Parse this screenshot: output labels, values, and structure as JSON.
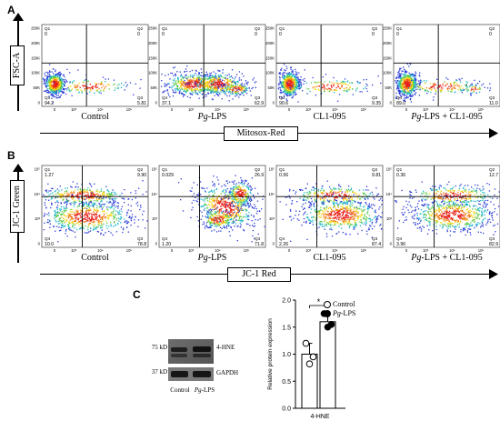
{
  "panels": {
    "a": "A",
    "b": "B",
    "c": "C"
  },
  "panel_a": {
    "y_axis_label": "FSC-A",
    "x_axis_label": "Mitosox-Red",
    "y_ticks": [
      "250K",
      "200K",
      "150K",
      "100K",
      "50K",
      "0"
    ],
    "x_ticks": [
      "0",
      "10³",
      "10⁴",
      "10⁵"
    ],
    "plots": [
      {
        "caption_plain": "Control",
        "caption_ital": "",
        "caption_rest": "",
        "q1": "0",
        "q2": "0",
        "q3": "5.81",
        "q4": "94.2"
      },
      {
        "caption_plain": "",
        "caption_ital": "Pg",
        "caption_rest": "-LPS",
        "q1": "0",
        "q2": "0",
        "q3": "62.9",
        "q4": "37.1"
      },
      {
        "caption_plain": "CL1-095",
        "caption_ital": "",
        "caption_rest": "",
        "q1": "0",
        "q2": "0",
        "q3": "9.35",
        "q4": "90.6"
      },
      {
        "caption_plain": "",
        "caption_ital": "Pg",
        "caption_rest": "-LPS + CL1-095",
        "q1": "0",
        "q2": "0",
        "q3": "11.0",
        "q4": "89.0"
      }
    ]
  },
  "panel_b": {
    "y_axis_label": "JC-1 Green",
    "x_axis_label": "JC-1 Red",
    "y_ticks": [
      "10⁵",
      "10⁴",
      "10³",
      "0"
    ],
    "x_ticks": [
      "0",
      "10³",
      "10⁴",
      "10⁵"
    ],
    "plots": [
      {
        "caption_plain": "Control",
        "caption_ital": "",
        "caption_rest": "",
        "q1": "1.27",
        "q2": "9.90",
        "q3": "78.8",
        "q4": "10.0"
      },
      {
        "caption_plain": "",
        "caption_ital": "Pg",
        "caption_rest": "-LPS",
        "q1": "0.029",
        "q2": "26.9",
        "q3": "71.8",
        "q4": "1.20"
      },
      {
        "caption_plain": "CL1-095",
        "caption_ital": "",
        "caption_rest": "",
        "q1": "0.56",
        "q2": "9.81",
        "q3": "87.4",
        "q4": "2.26"
      },
      {
        "caption_plain": "",
        "caption_ital": "Pg",
        "caption_rest": "-LPS + CL1-095",
        "q1": "0.36",
        "q2": "12.7",
        "q3": "82.9",
        "q4": "3.96"
      }
    ]
  },
  "panel_c": {
    "blot": {
      "mw_top": "75 kD",
      "mw_bottom": "37 kD",
      "band_top": "4-HNE",
      "band_bottom": "GAPDH",
      "lane1": "Control",
      "lane2_ital": "Pg",
      "lane2_rest": "-LPS"
    }
  },
  "chart_data": {
    "type": "bar",
    "categories": [
      "4-HNE"
    ],
    "ylabel": "Relative protein expression",
    "xlabel": "",
    "ylim": [
      0.0,
      2.0
    ],
    "yticks": [
      "0.0",
      "0.5",
      "1.0",
      "1.5",
      "2.0"
    ],
    "significance": "*",
    "legend": {
      "position": "top-right",
      "entries": [
        {
          "label_plain": "Control",
          "label_ital": "",
          "label_rest": "",
          "marker": "open-circle",
          "color": "#ffffff"
        },
        {
          "label_plain": "",
          "label_ital": "Pg",
          "label_rest": "-LPS",
          "marker": "filled-circle",
          "color": "#000000"
        }
      ]
    },
    "series": [
      {
        "name": "Control",
        "mean": 1.0,
        "error": 0.2,
        "points": [
          1.2,
          0.95,
          0.82
        ]
      },
      {
        "name": "Pg-LPS",
        "mean": 1.6,
        "error": 0.15,
        "points": [
          1.75,
          1.55,
          1.5
        ]
      }
    ]
  }
}
